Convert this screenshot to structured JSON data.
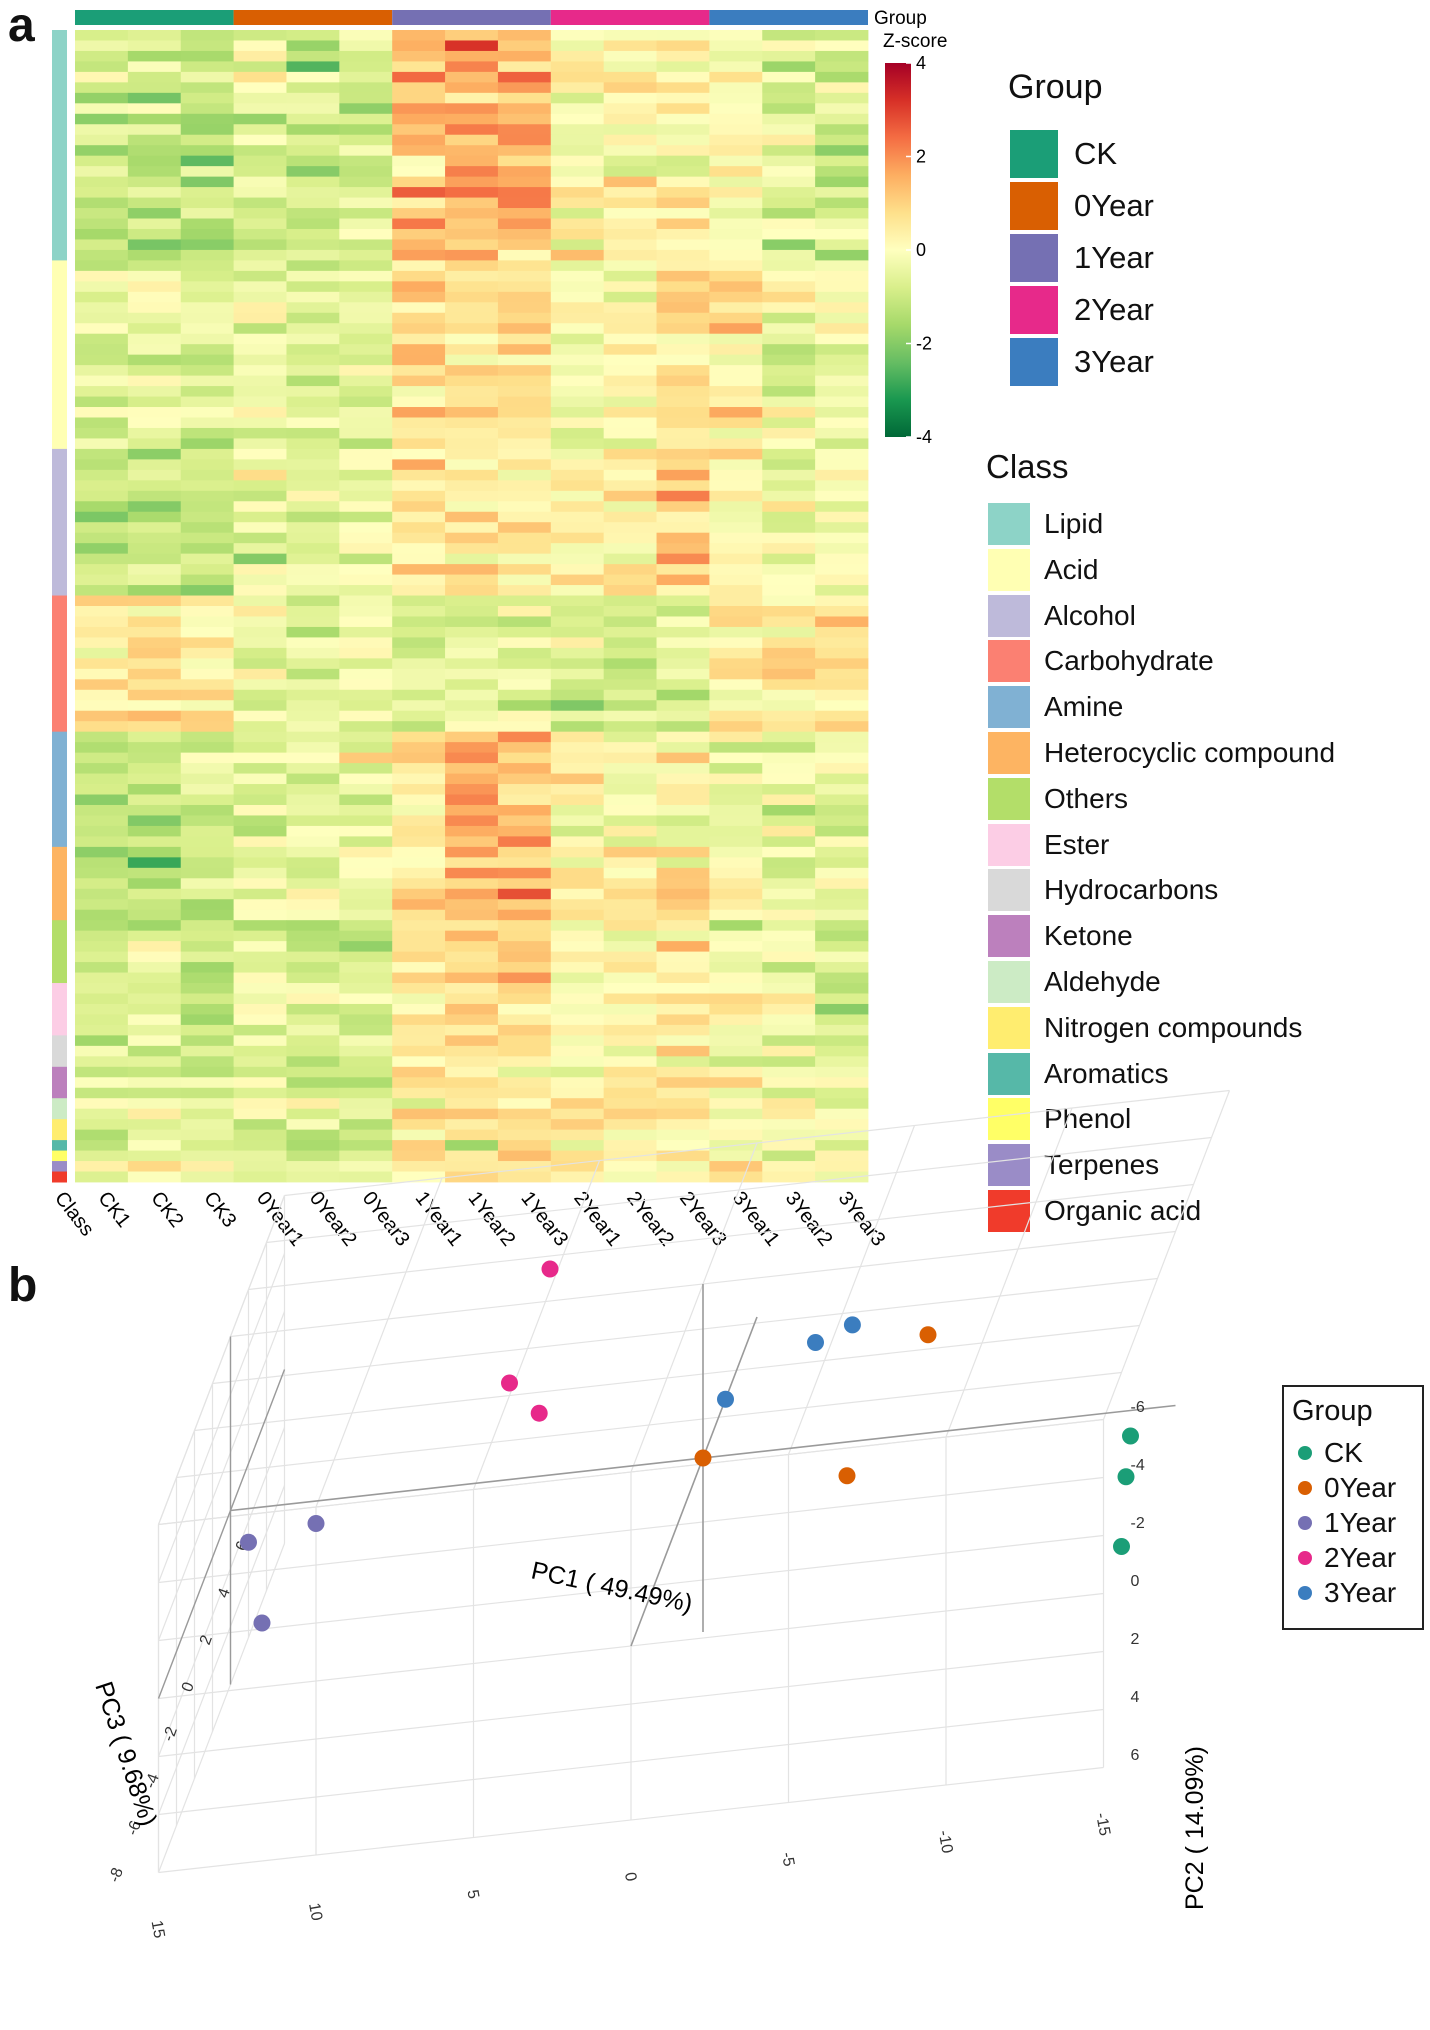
{
  "panel_labels": {
    "a": "a",
    "b": "b"
  },
  "chart_data": [
    {
      "type": "heatmap",
      "panel": "a",
      "columns": [
        "CK1",
        "CK2",
        "CK3",
        "0Year1",
        "0Year2",
        "0Year3",
        "1Year1",
        "1Year2",
        "1Year3",
        "2Year1",
        "2Year2",
        "2Year3",
        "3Year1",
        "3Year2",
        "3Year3"
      ],
      "class_axis_label": "Class",
      "group_annotation_label": "Group",
      "group_annotation": [
        {
          "name": "CK",
          "color": "#1b9e77"
        },
        {
          "name": "0Year",
          "color": "#d95f02"
        },
        {
          "name": "1Year",
          "color": "#7570b3"
        },
        {
          "name": "2Year",
          "color": "#e7298a"
        },
        {
          "name": "3Year",
          "color": "#3b7dbf"
        }
      ],
      "colorbar": {
        "title": "Z-score",
        "range": [
          -4,
          4
        ],
        "ticks": [
          4,
          2,
          0,
          -2,
          -4
        ],
        "colors": [
          "#006837",
          "#1a9850",
          "#66bd63",
          "#a6d96a",
          "#d9ef8b",
          "#ffffbf",
          "#fee08b",
          "#fdae61",
          "#f46d43",
          "#d73027",
          "#a50026"
        ]
      },
      "group_legend_title": "Group",
      "class_legend_title": "Class",
      "classes": [
        {
          "name": "Lipid",
          "color": "#8dd3c7",
          "rows": 22
        },
        {
          "name": "Acid",
          "color": "#ffffb3",
          "rows": 18
        },
        {
          "name": "Alcohol",
          "color": "#bebada",
          "rows": 14
        },
        {
          "name": "Carbohydrate",
          "color": "#fb8072",
          "rows": 13
        },
        {
          "name": "Amine",
          "color": "#80b1d3",
          "rows": 11
        },
        {
          "name": "Heterocyclic compound",
          "color": "#fdb462",
          "rows": 7
        },
        {
          "name": "Others",
          "color": "#b3de69",
          "rows": 6
        },
        {
          "name": "Ester",
          "color": "#fccde5",
          "rows": 5
        },
        {
          "name": "Hydrocarbons",
          "color": "#d9d9d9",
          "rows": 3
        },
        {
          "name": "Ketone",
          "color": "#bc80bd",
          "rows": 3
        },
        {
          "name": "Aldehyde",
          "color": "#ccebc5",
          "rows": 2
        },
        {
          "name": "Nitrogen compounds",
          "color": "#ffed6f",
          "rows": 2
        },
        {
          "name": "Aromatics",
          "color": "#56b8a8",
          "rows": 1
        },
        {
          "name": "Phenol",
          "color": "#ffff66",
          "rows": 1
        },
        {
          "name": "Terpenes",
          "color": "#9a8cc7",
          "rows": 1
        },
        {
          "name": "Organic acid",
          "color": "#f03b2b",
          "rows": 1
        }
      ],
      "group_means_by_class": {
        "Lipid": [
          -0.9,
          -1.0,
          -1.1,
          -0.7,
          -1.0,
          -0.6,
          1.2,
          1.6,
          1.4,
          0.2,
          0.3,
          0.3,
          -0.1,
          -0.5,
          -0.6
        ],
        "Acid": [
          -0.8,
          -0.7,
          -0.7,
          -0.4,
          -0.7,
          -0.6,
          0.6,
          0.5,
          0.7,
          -0.4,
          -0.2,
          0.6,
          0.3,
          -0.3,
          -0.4
        ],
        "Alcohol": [
          -1.0,
          -0.9,
          -0.9,
          -0.5,
          -0.6,
          -0.4,
          0.4,
          0.5,
          0.6,
          0.2,
          0.6,
          1.2,
          0.2,
          -0.1,
          -0.3
        ],
        "Carbohydrate": [
          0.5,
          0.7,
          0.5,
          -0.4,
          -0.6,
          -0.3,
          -0.8,
          -0.5,
          -0.5,
          -0.8,
          -0.9,
          -0.9,
          0.4,
          0.2,
          0.6
        ],
        "Amine": [
          -1.2,
          -1.0,
          -1.1,
          -0.6,
          -0.5,
          -0.3,
          0.7,
          1.6,
          1.3,
          0.1,
          0.0,
          0.2,
          -0.2,
          -0.5,
          -0.6
        ],
        "Heterocyclic compound": [
          -1.4,
          -1.3,
          -1.2,
          -0.4,
          -0.5,
          -0.4,
          0.8,
          1.5,
          1.3,
          0.2,
          0.3,
          0.5,
          0.1,
          -0.3,
          -0.4
        ],
        "Others": [
          -0.9,
          -0.6,
          -0.8,
          -0.7,
          -1.0,
          -0.8,
          0.9,
          1.3,
          1.4,
          0.3,
          0.2,
          0.6,
          -0.1,
          -0.3,
          -0.7
        ],
        "Ester": [
          -0.3,
          -0.6,
          -1.1,
          -0.6,
          -0.7,
          -0.5,
          0.6,
          0.9,
          0.8,
          0.1,
          0.2,
          0.4,
          0.4,
          -0.2,
          -0.9
        ],
        "Hydrocarbons": [
          -1.0,
          -0.8,
          -1.1,
          -0.6,
          -0.5,
          -0.3,
          0.7,
          0.9,
          1.0,
          0.2,
          0.3,
          0.4,
          -0.2,
          -0.4,
          -0.7
        ],
        "Ketone": [
          -0.6,
          -0.7,
          -0.8,
          -0.6,
          -0.8,
          -0.5,
          0.6,
          0.8,
          0.7,
          0.1,
          0.4,
          0.6,
          0.2,
          -0.2,
          -0.5
        ],
        "Aldehyde": [
          -0.5,
          -0.3,
          -0.4,
          -0.4,
          -0.3,
          -0.4,
          0.4,
          0.2,
          0.3,
          0.6,
          0.3,
          0.3,
          0.2,
          0.1,
          -0.2
        ],
        "Nitrogen compounds": [
          -0.4,
          -0.2,
          -0.5,
          -0.8,
          -0.6,
          -0.6,
          0.5,
          0.9,
          0.7,
          0.8,
          0.5,
          0.2,
          0.2,
          0.0,
          -0.4
        ],
        "Aromatics": [
          -0.7,
          -0.5,
          -0.9,
          -0.5,
          -0.4,
          -0.6,
          0.6,
          -1.5,
          0.9,
          0.5,
          0.4,
          0.1,
          0.5,
          0.2,
          -0.3
        ],
        "Phenol": [
          -0.4,
          -0.3,
          -0.5,
          -0.5,
          -0.6,
          -0.5,
          0.4,
          0.8,
          1.0,
          0.9,
          0.5,
          0.3,
          0.1,
          -0.1,
          -0.4
        ],
        "Terpenes": [
          -0.6,
          -0.5,
          -0.5,
          -0.5,
          -0.4,
          -0.3,
          0.4,
          0.5,
          0.5,
          0.3,
          0.2,
          0.1,
          0.2,
          0.0,
          -0.3
        ],
        "Organic acid": [
          -0.5,
          -0.4,
          -0.4,
          -0.3,
          -0.5,
          -0.4,
          0.5,
          0.6,
          0.4,
          0.3,
          0.2,
          0.1,
          0.1,
          0.0,
          -0.2
        ]
      }
    },
    {
      "type": "scatter3d",
      "panel": "b",
      "x_label": "PC1 ( 49.49%)",
      "y_label": "PC2 ( 14.09%)",
      "z_label": "PC3 ( 9.68%)",
      "x_range": [
        -15,
        15
      ],
      "y_range": [
        -6,
        6
      ],
      "z_range": [
        -8,
        6
      ],
      "x_ticks": [
        15,
        10,
        5,
        0,
        -5,
        -10,
        -15
      ],
      "y_ticks": [
        -6,
        -4,
        -2,
        0,
        2,
        4,
        6
      ],
      "z_ticks": [
        6,
        4,
        2,
        0,
        -2,
        -4,
        -6,
        -8
      ],
      "legend_title": "Group",
      "series": [
        {
          "name": "CK",
          "color": "#1b9e77",
          "points": [
            [
              -15,
              -3,
              -5
            ],
            [
              -15,
              -2,
              -5.5
            ],
            [
              -15,
              0,
              -6
            ]
          ]
        },
        {
          "name": "0Year",
          "color": "#d95f02",
          "points": [
            [
              0,
              0,
              0
            ],
            [
              -5,
              0,
              -1.5
            ],
            [
              -7,
              -3,
              0.5
            ]
          ]
        },
        {
          "name": "1Year",
          "color": "#7570b3",
          "points": [
            [
              12,
              0,
              -1
            ],
            [
              14,
              0,
              -1.5
            ],
            [
              14,
              4,
              0
            ]
          ]
        },
        {
          "name": "2Year",
          "color": "#e7298a",
          "points": [
            [
              7,
              -1,
              3
            ],
            [
              6,
              0,
              2.8
            ],
            [
              6,
              -4,
              4
            ]
          ]
        },
        {
          "name": "3Year",
          "color": "#3b7dbf",
          "points": [
            [
              0,
              0,
              2.5
            ],
            [
              -3,
              -2,
              2
            ],
            [
              -4,
              -2,
              2.6
            ]
          ]
        }
      ]
    }
  ]
}
